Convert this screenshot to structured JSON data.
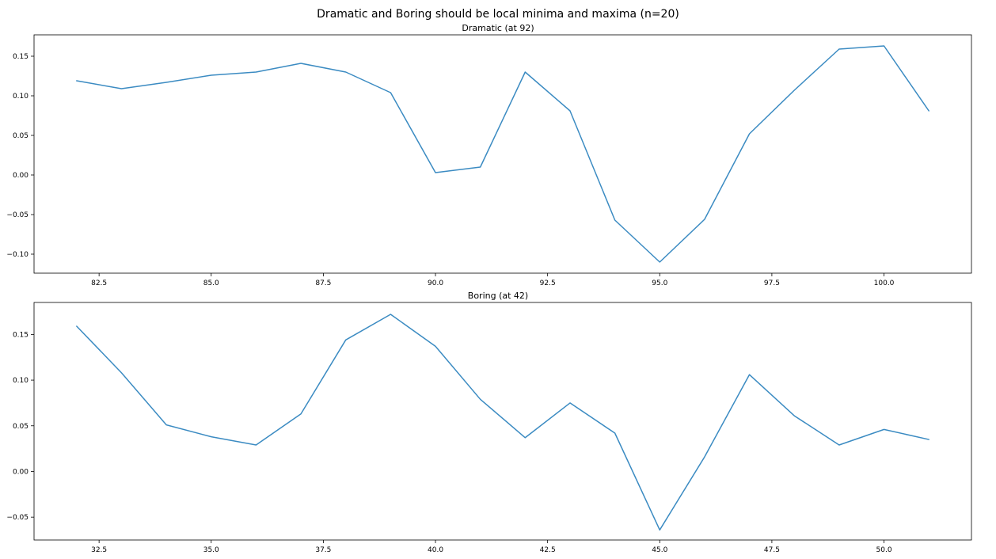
{
  "figure_title": "Dramatic and Boring should be local minima and maxima (n=20)",
  "chart_data": [
    {
      "type": "line",
      "title": "Dramatic (at 92)",
      "xlabel": "",
      "ylabel": "",
      "xlim": [
        81.05,
        101.95
      ],
      "ylim": [
        -0.124,
        0.177
      ],
      "xticks": [
        "82.5",
        "85.0",
        "87.5",
        "90.0",
        "92.5",
        "95.0",
        "97.5",
        "100.0"
      ],
      "yticks": [
        "0.15",
        "0.10",
        "0.05",
        "0.00",
        "−0.05",
        "−0.10"
      ],
      "grid": false,
      "color": "#3b8bc2",
      "x": [
        82,
        83,
        84,
        85,
        86,
        87,
        88,
        89,
        90,
        91,
        92,
        93,
        94,
        95,
        96,
        97,
        98,
        99,
        100,
        101
      ],
      "y": [
        0.119,
        0.109,
        0.117,
        0.126,
        0.13,
        0.141,
        0.13,
        0.104,
        0.003,
        0.01,
        0.13,
        0.081,
        -0.057,
        -0.11,
        -0.056,
        0.052,
        0.107,
        0.159,
        0.163,
        0.081
      ]
    },
    {
      "type": "line",
      "title": "Boring (at 42)",
      "xlabel": "",
      "ylabel": "",
      "xlim": [
        31.05,
        51.95
      ],
      "ylim": [
        -0.075,
        0.185
      ],
      "xticks": [
        "32.5",
        "35.0",
        "37.5",
        "40.0",
        "42.5",
        "45.0",
        "47.5",
        "50.0"
      ],
      "yticks": [
        "0.15",
        "0.10",
        "0.05",
        "0.00",
        "−0.05"
      ],
      "grid": false,
      "color": "#3b8bc2",
      "x": [
        32,
        33,
        34,
        35,
        36,
        37,
        38,
        39,
        40,
        41,
        42,
        43,
        44,
        45,
        46,
        47,
        48,
        49,
        50,
        51
      ],
      "y": [
        0.159,
        0.108,
        0.051,
        0.038,
        0.029,
        0.063,
        0.144,
        0.172,
        0.137,
        0.079,
        0.037,
        0.075,
        0.042,
        -0.064,
        0.016,
        0.106,
        0.061,
        0.029,
        0.046,
        0.035
      ]
    }
  ]
}
